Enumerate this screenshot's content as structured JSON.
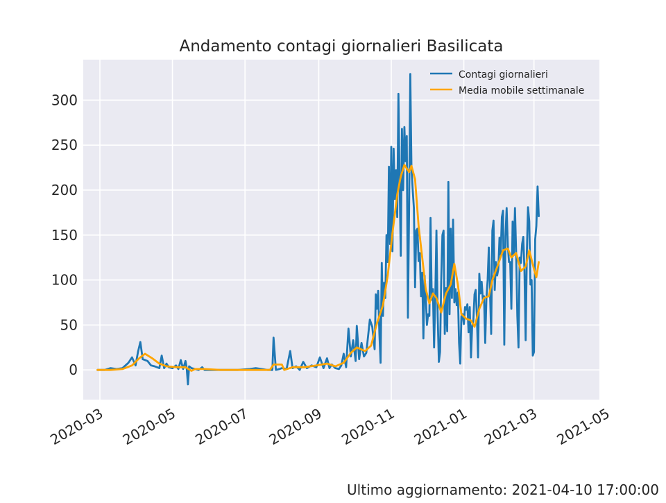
{
  "chart_data": {
    "type": "line",
    "title": "Andamento contagi giornalieri Basilicata",
    "footer": "Ultimo aggiornamento: 2021-04-10 17:00:00",
    "xlabel": "",
    "ylabel": "",
    "xlim": [
      "2020-02-16",
      "2021-04-25"
    ],
    "ylim": [
      -33,
      345
    ],
    "x_ticks": [
      "2020-03",
      "2020-05",
      "2020-07",
      "2020-09",
      "2020-11",
      "2021-01",
      "2021-03",
      "2021-05"
    ],
    "y_ticks": [
      0,
      50,
      100,
      150,
      200,
      250,
      300
    ],
    "grid": true,
    "legend_position": "upper-right",
    "colors": {
      "plot_bg": "#EAEAF2",
      "grid": "#FFFFFF",
      "series1": "#1F77B4",
      "series2": "#FFA500"
    },
    "series": [
      {
        "name": "Contagi giornalieri",
        "points": [
          [
            "2020-02-28",
            0
          ],
          [
            "2020-03-05",
            0
          ],
          [
            "2020-03-10",
            2
          ],
          [
            "2020-03-15",
            1
          ],
          [
            "2020-03-20",
            2
          ],
          [
            "2020-03-25",
            8
          ],
          [
            "2020-03-28",
            14
          ],
          [
            "2020-03-31",
            5
          ],
          [
            "2020-04-02",
            20
          ],
          [
            "2020-04-04",
            31
          ],
          [
            "2020-04-06",
            12
          ],
          [
            "2020-04-10",
            10
          ],
          [
            "2020-04-13",
            5
          ],
          [
            "2020-04-16",
            4
          ],
          [
            "2020-04-20",
            2
          ],
          [
            "2020-04-22",
            16
          ],
          [
            "2020-04-24",
            2
          ],
          [
            "2020-04-26",
            7
          ],
          [
            "2020-04-28",
            3
          ],
          [
            "2020-05-01",
            2
          ],
          [
            "2020-05-04",
            5
          ],
          [
            "2020-05-06",
            1
          ],
          [
            "2020-05-08",
            11
          ],
          [
            "2020-05-10",
            1
          ],
          [
            "2020-05-12",
            10
          ],
          [
            "2020-05-13",
            2
          ],
          [
            "2020-05-14",
            -16
          ],
          [
            "2020-05-15",
            4
          ],
          [
            "2020-05-17",
            2
          ],
          [
            "2020-05-20",
            1
          ],
          [
            "2020-05-23",
            0
          ],
          [
            "2020-05-26",
            3
          ],
          [
            "2020-05-28",
            0
          ],
          [
            "2020-06-05",
            0
          ],
          [
            "2020-06-15",
            0
          ],
          [
            "2020-06-25",
            0
          ],
          [
            "2020-07-05",
            1
          ],
          [
            "2020-07-10",
            2
          ],
          [
            "2020-07-15",
            1
          ],
          [
            "2020-07-20",
            0
          ],
          [
            "2020-07-24",
            0
          ],
          [
            "2020-07-25",
            36
          ],
          [
            "2020-07-27",
            0
          ],
          [
            "2020-07-30",
            1
          ],
          [
            "2020-08-01",
            2
          ],
          [
            "2020-08-05",
            1
          ],
          [
            "2020-08-08",
            21
          ],
          [
            "2020-08-10",
            2
          ],
          [
            "2020-08-13",
            4
          ],
          [
            "2020-08-16",
            0
          ],
          [
            "2020-08-19",
            9
          ],
          [
            "2020-08-22",
            2
          ],
          [
            "2020-08-26",
            5
          ],
          [
            "2020-08-30",
            3
          ],
          [
            "2020-09-02",
            14
          ],
          [
            "2020-09-05",
            2
          ],
          [
            "2020-09-08",
            13
          ],
          [
            "2020-09-10",
            2
          ],
          [
            "2020-09-12",
            6
          ],
          [
            "2020-09-15",
            2
          ],
          [
            "2020-09-18",
            1
          ],
          [
            "2020-09-20",
            5
          ],
          [
            "2020-09-22",
            18
          ],
          [
            "2020-09-24",
            3
          ],
          [
            "2020-09-26",
            46
          ],
          [
            "2020-09-28",
            15
          ],
          [
            "2020-09-30",
            33
          ],
          [
            "2020-10-02",
            10
          ],
          [
            "2020-10-03",
            49
          ],
          [
            "2020-10-05",
            12
          ],
          [
            "2020-10-07",
            30
          ],
          [
            "2020-10-09",
            15
          ],
          [
            "2020-10-11",
            19
          ],
          [
            "2020-10-14",
            56
          ],
          [
            "2020-10-16",
            48
          ],
          [
            "2020-10-18",
            23
          ],
          [
            "2020-10-19",
            84
          ],
          [
            "2020-10-20",
            68
          ],
          [
            "2020-10-21",
            88
          ],
          [
            "2020-10-22",
            40
          ],
          [
            "2020-10-23",
            8
          ],
          [
            "2020-10-24",
            119
          ],
          [
            "2020-10-25",
            60
          ],
          [
            "2020-10-26",
            97
          ],
          [
            "2020-10-27",
            80
          ],
          [
            "2020-10-28",
            150
          ],
          [
            "2020-10-29",
            120
          ],
          [
            "2020-10-30",
            226
          ],
          [
            "2020-10-31",
            140
          ],
          [
            "2020-11-01",
            248
          ],
          [
            "2020-11-02",
            132
          ],
          [
            "2020-11-03",
            246
          ],
          [
            "2020-11-04",
            190
          ],
          [
            "2020-11-05",
            222
          ],
          [
            "2020-11-06",
            170
          ],
          [
            "2020-11-07",
            307
          ],
          [
            "2020-11-08",
            210
          ],
          [
            "2020-11-09",
            127
          ],
          [
            "2020-11-10",
            268
          ],
          [
            "2020-11-11",
            200
          ],
          [
            "2020-11-12",
            270
          ],
          [
            "2020-11-13",
            232
          ],
          [
            "2020-11-14",
            260
          ],
          [
            "2020-11-15",
            58
          ],
          [
            "2020-11-16",
            180
          ],
          [
            "2020-11-17",
            329
          ],
          [
            "2020-11-18",
            225
          ],
          [
            "2020-11-19",
            200
          ],
          [
            "2020-11-20",
            180
          ],
          [
            "2020-11-21",
            92
          ],
          [
            "2020-11-22",
            155
          ],
          [
            "2020-11-23",
            157
          ],
          [
            "2020-11-24",
            121
          ],
          [
            "2020-11-25",
            130
          ],
          [
            "2020-11-26",
            82
          ],
          [
            "2020-11-27",
            108
          ],
          [
            "2020-11-28",
            35
          ],
          [
            "2020-11-29",
            105
          ],
          [
            "2020-11-30",
            82
          ],
          [
            "2020-12-01",
            50
          ],
          [
            "2020-12-02",
            62
          ],
          [
            "2020-12-03",
            60
          ],
          [
            "2020-12-04",
            169
          ],
          [
            "2020-12-05",
            78
          ],
          [
            "2020-12-06",
            90
          ],
          [
            "2020-12-07",
            25
          ],
          [
            "2020-12-08",
            80
          ],
          [
            "2020-12-09",
            155
          ],
          [
            "2020-12-10",
            60
          ],
          [
            "2020-12-11",
            9
          ],
          [
            "2020-12-12",
            20
          ],
          [
            "2020-12-13",
            100
          ],
          [
            "2020-12-14",
            150
          ],
          [
            "2020-12-15",
            155
          ],
          [
            "2020-12-16",
            40
          ],
          [
            "2020-12-17",
            91
          ],
          [
            "2020-12-18",
            43
          ],
          [
            "2020-12-19",
            209
          ],
          [
            "2020-12-20",
            62
          ],
          [
            "2020-12-21",
            157
          ],
          [
            "2020-12-22",
            80
          ],
          [
            "2020-12-23",
            167
          ],
          [
            "2020-12-24",
            75
          ],
          [
            "2020-12-25",
            90
          ],
          [
            "2020-12-26",
            72
          ],
          [
            "2020-12-27",
            86
          ],
          [
            "2020-12-28",
            30
          ],
          [
            "2020-12-29",
            7
          ],
          [
            "2020-12-30",
            60
          ],
          [
            "2020-12-31",
            62
          ],
          [
            "2021-01-01",
            51
          ],
          [
            "2021-01-02",
            70
          ],
          [
            "2021-01-03",
            67
          ],
          [
            "2021-01-04",
            73
          ],
          [
            "2021-01-05",
            42
          ],
          [
            "2021-01-06",
            70
          ],
          [
            "2021-01-07",
            14
          ],
          [
            "2021-01-08",
            49
          ],
          [
            "2021-01-09",
            55
          ],
          [
            "2021-01-10",
            84
          ],
          [
            "2021-01-11",
            89
          ],
          [
            "2021-01-12",
            60
          ],
          [
            "2021-01-13",
            14
          ],
          [
            "2021-01-14",
            107
          ],
          [
            "2021-01-15",
            85
          ],
          [
            "2021-01-16",
            98
          ],
          [
            "2021-01-17",
            78
          ],
          [
            "2021-01-18",
            82
          ],
          [
            "2021-01-19",
            30
          ],
          [
            "2021-01-20",
            79
          ],
          [
            "2021-01-21",
            100
          ],
          [
            "2021-01-22",
            136
          ],
          [
            "2021-01-23",
            87
          ],
          [
            "2021-01-24",
            40
          ],
          [
            "2021-01-25",
            155
          ],
          [
            "2021-01-26",
            166
          ],
          [
            "2021-01-27",
            89
          ],
          [
            "2021-01-28",
            120
          ],
          [
            "2021-01-29",
            105
          ],
          [
            "2021-01-30",
            112
          ],
          [
            "2021-01-31",
            147
          ],
          [
            "2021-02-01",
            128
          ],
          [
            "2021-02-02",
            170
          ],
          [
            "2021-02-03",
            177
          ],
          [
            "2021-02-04",
            28
          ],
          [
            "2021-02-05",
            149
          ],
          [
            "2021-02-06",
            180
          ],
          [
            "2021-02-07",
            138
          ],
          [
            "2021-02-08",
            120
          ],
          [
            "2021-02-09",
            120
          ],
          [
            "2021-02-10",
            68
          ],
          [
            "2021-02-11",
            165
          ],
          [
            "2021-02-12",
            128
          ],
          [
            "2021-02-13",
            180
          ],
          [
            "2021-02-14",
            130
          ],
          [
            "2021-02-15",
            60
          ],
          [
            "2021-02-16",
            25
          ],
          [
            "2021-02-17",
            125
          ],
          [
            "2021-02-18",
            119
          ],
          [
            "2021-02-19",
            140
          ],
          [
            "2021-02-20",
            148
          ],
          [
            "2021-02-21",
            110
          ],
          [
            "2021-02-22",
            33
          ],
          [
            "2021-02-23",
            130
          ],
          [
            "2021-02-24",
            181
          ],
          [
            "2021-02-25",
            165
          ],
          [
            "2021-02-26",
            95
          ],
          [
            "2021-02-27",
            100
          ],
          [
            "2021-02-28",
            16
          ],
          [
            "2021-03-01",
            20
          ],
          [
            "2021-03-02",
            145
          ],
          [
            "2021-03-03",
            160
          ],
          [
            "2021-03-04",
            204
          ],
          [
            "2021-03-05",
            171
          ]
        ]
      },
      {
        "name": "Media mobile settimanale",
        "points": [
          [
            "2020-02-28",
            0
          ],
          [
            "2020-03-10",
            0
          ],
          [
            "2020-03-20",
            1
          ],
          [
            "2020-03-28",
            5
          ],
          [
            "2020-04-03",
            13
          ],
          [
            "2020-04-08",
            18
          ],
          [
            "2020-04-14",
            13
          ],
          [
            "2020-04-20",
            7
          ],
          [
            "2020-04-26",
            4
          ],
          [
            "2020-05-05",
            3
          ],
          [
            "2020-05-12",
            3
          ],
          [
            "2020-05-17",
            -1
          ],
          [
            "2020-05-20",
            1
          ],
          [
            "2020-05-28",
            1
          ],
          [
            "2020-06-10",
            0
          ],
          [
            "2020-07-01",
            0
          ],
          [
            "2020-07-22",
            0
          ],
          [
            "2020-07-25",
            6
          ],
          [
            "2020-08-01",
            6
          ],
          [
            "2020-08-03",
            0
          ],
          [
            "2020-08-10",
            3
          ],
          [
            "2020-08-20",
            3
          ],
          [
            "2020-08-30",
            5
          ],
          [
            "2020-09-08",
            7
          ],
          [
            "2020-09-15",
            4
          ],
          [
            "2020-09-22",
            8
          ],
          [
            "2020-09-28",
            19
          ],
          [
            "2020-10-03",
            25
          ],
          [
            "2020-10-10",
            21
          ],
          [
            "2020-10-15",
            27
          ],
          [
            "2020-10-20",
            52
          ],
          [
            "2020-10-25",
            72
          ],
          [
            "2020-10-29",
            105
          ],
          [
            "2020-11-02",
            152
          ],
          [
            "2020-11-06",
            195
          ],
          [
            "2020-11-09",
            215
          ],
          [
            "2020-11-12",
            228
          ],
          [
            "2020-11-16",
            220
          ],
          [
            "2020-11-18",
            227
          ],
          [
            "2020-11-21",
            212
          ],
          [
            "2020-11-24",
            160
          ],
          [
            "2020-11-27",
            125
          ],
          [
            "2020-11-30",
            90
          ],
          [
            "2020-12-03",
            74
          ],
          [
            "2020-12-06",
            85
          ],
          [
            "2020-12-09",
            80
          ],
          [
            "2020-12-13",
            64
          ],
          [
            "2020-12-17",
            85
          ],
          [
            "2020-12-21",
            95
          ],
          [
            "2020-12-24",
            118
          ],
          [
            "2020-12-27",
            95
          ],
          [
            "2020-12-30",
            62
          ],
          [
            "2021-01-03",
            57
          ],
          [
            "2021-01-07",
            55
          ],
          [
            "2021-01-10",
            48
          ],
          [
            "2021-01-14",
            68
          ],
          [
            "2021-01-18",
            80
          ],
          [
            "2021-01-22",
            82
          ],
          [
            "2021-01-25",
            100
          ],
          [
            "2021-01-30",
            118
          ],
          [
            "2021-02-03",
            133
          ],
          [
            "2021-02-07",
            135
          ],
          [
            "2021-02-10",
            125
          ],
          [
            "2021-02-14",
            130
          ],
          [
            "2021-02-18",
            110
          ],
          [
            "2021-02-22",
            115
          ],
          [
            "2021-02-25",
            133
          ],
          [
            "2021-03-01",
            112
          ],
          [
            "2021-03-03",
            103
          ],
          [
            "2021-03-05",
            120
          ]
        ]
      }
    ]
  }
}
